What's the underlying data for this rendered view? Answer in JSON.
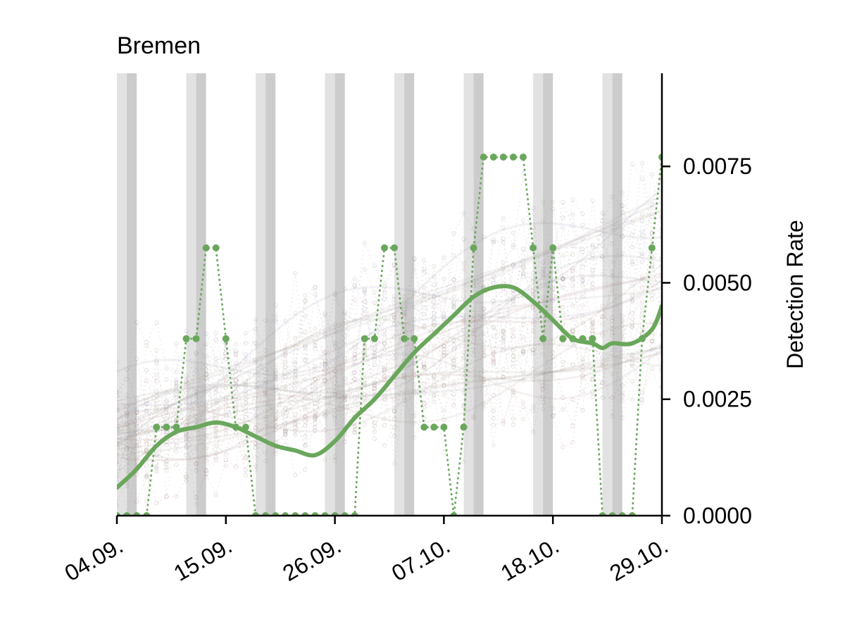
{
  "chart_data": {
    "type": "line",
    "title": "Bremen",
    "xlabel": "",
    "ylabel": "Detection Rate",
    "x_tick_labels": [
      "04.09.",
      "15.09.",
      "26.09.",
      "07.10.",
      "18.10.",
      "29.10."
    ],
    "x_tick_days": [
      0,
      11,
      22,
      33,
      44,
      55
    ],
    "x_range_days": [
      0,
      55
    ],
    "ylim": [
      0,
      0.0095
    ],
    "y_ticks": [
      0.0,
      0.0025,
      0.005,
      0.0075
    ],
    "y_tick_labels": [
      "0.0000",
      "0.0025",
      "0.0050",
      "0.0075"
    ],
    "y_axis_side": "right",
    "grid": false,
    "accent_color": "#6aa75c",
    "weekend_shading": {
      "saturday_color": "#e2e2e2",
      "sunday_color": "#cccccc",
      "saturday_days": [
        0.5,
        7.5,
        14.5,
        21.5,
        28.5,
        35.5,
        42.5,
        49.5
      ],
      "sunday_days": [
        1.5,
        8.5,
        15.5,
        22.5,
        29.5,
        36.5,
        43.5,
        50.5
      ]
    },
    "series": [
      {
        "style": "dotted-markers",
        "color": "#6aa75c",
        "x": [
          0,
          1,
          2,
          3,
          4,
          5,
          6,
          7,
          8,
          9,
          10,
          11,
          12,
          13,
          14,
          15,
          16,
          17,
          18,
          19,
          20,
          21,
          22,
          23,
          24,
          25,
          26,
          27,
          28,
          29,
          30,
          31,
          32,
          33,
          34,
          35,
          36,
          37,
          38,
          39,
          40,
          41,
          42,
          43,
          44,
          45,
          46,
          47,
          48,
          49,
          50,
          51,
          52,
          53,
          54,
          55
        ],
        "values": [
          0,
          0,
          0,
          0,
          0.0019,
          0.0019,
          0.0019,
          0.0038,
          0.0038,
          0.00575,
          0.00575,
          0.0038,
          0.0019,
          0.0019,
          0,
          0,
          0,
          0,
          0,
          0,
          0,
          0,
          0,
          0,
          0,
          0.0038,
          0.0038,
          0.00575,
          0.00575,
          0.0038,
          0.0038,
          0.0019,
          0.0019,
          0.0019,
          0,
          0.0019,
          0.00575,
          0.0077,
          0.0077,
          0.0077,
          0.0077,
          0.0077,
          0.00575,
          0.0038,
          0.00575,
          0.0038,
          0.0038,
          0.0038,
          0.0038,
          0,
          0,
          0,
          0,
          0.0038,
          0.00575,
          0.0077
        ]
      },
      {
        "style": "smooth-trend",
        "color": "#6aa75c",
        "x": [
          0,
          2,
          4,
          6,
          8,
          10,
          12,
          14,
          16,
          18,
          20,
          22,
          24,
          26,
          28,
          30,
          32,
          34,
          36,
          38,
          40,
          42,
          44,
          46,
          48,
          49,
          50,
          52,
          54,
          55
        ],
        "values": [
          0.0006,
          0.001,
          0.0015,
          0.0018,
          0.0019,
          0.002,
          0.0019,
          0.0017,
          0.0015,
          0.0014,
          0.0013,
          0.0016,
          0.0021,
          0.0025,
          0.003,
          0.0035,
          0.0039,
          0.0043,
          0.0047,
          0.0049,
          0.0049,
          0.0046,
          0.0042,
          0.0038,
          0.0037,
          0.0036,
          0.0037,
          0.0037,
          0.004,
          0.0045
        ]
      }
    ]
  }
}
